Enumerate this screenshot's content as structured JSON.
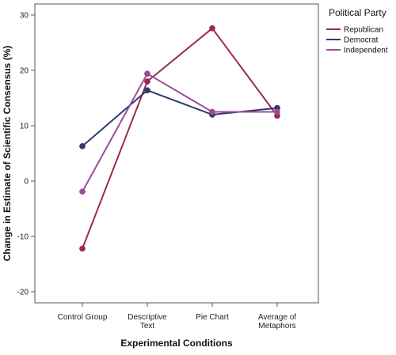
{
  "chart_data": {
    "type": "line",
    "title": "",
    "xlabel": "Experimental Conditions",
    "ylabel": "Change in Estimate of Scientific Consensus (%)",
    "categories": [
      [
        "Control Group"
      ],
      [
        "Descriptive",
        "Text"
      ],
      [
        "Pie Chart"
      ],
      [
        "Average of",
        "Metaphors"
      ]
    ],
    "ylim": [
      -22,
      32
    ],
    "yticks": [
      -20,
      -10,
      0,
      10,
      20,
      30
    ],
    "grid": false,
    "legend": {
      "title": "Political Party",
      "placement": "top-right"
    },
    "series": [
      {
        "name": "Republican",
        "color": "#9c2a4e",
        "values": [
          -12.2,
          18.0,
          27.6,
          11.8
        ]
      },
      {
        "name": "Democrat",
        "color": "#33396b",
        "values": [
          6.3,
          16.4,
          12.0,
          13.2
        ]
      },
      {
        "name": "Independent",
        "color": "#9a4c9c",
        "values": [
          -1.9,
          19.4,
          12.5,
          12.5
        ]
      }
    ]
  }
}
